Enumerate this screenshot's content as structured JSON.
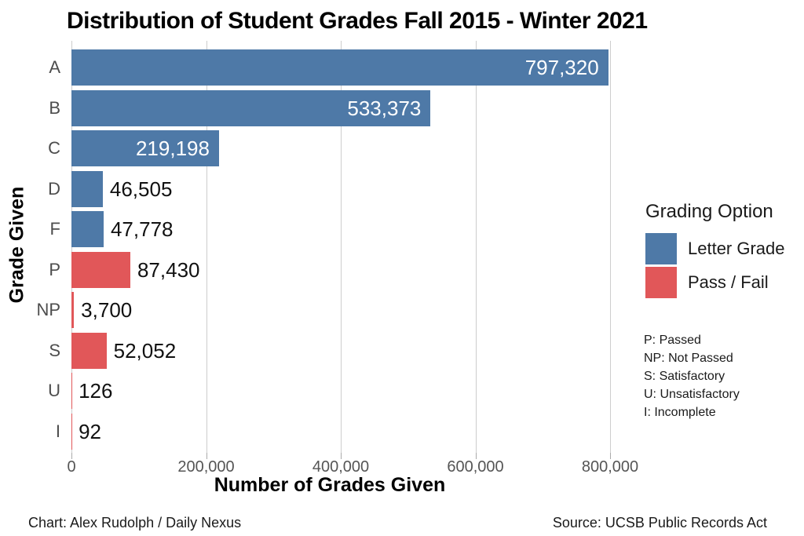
{
  "title": "Distribution of Student Grades Fall 2015 - Winter 2021",
  "legend": {
    "title": "Grading Option",
    "items": [
      {
        "label": "Letter Grade",
        "color": "#4e79a7"
      },
      {
        "label": "Pass / Fail",
        "color": "#e15759"
      }
    ]
  },
  "notes": [
    "P: Passed",
    "NP: Not Passed",
    "S: Satisfactory",
    "U: Unsatisfactory",
    "I: Incomplete"
  ],
  "footer": {
    "credit": "Chart: Alex Rudolph / Daily Nexus",
    "source": "Source: UCSB Public Records Act"
  },
  "chart_data": {
    "type": "bar",
    "orientation": "horizontal",
    "title": "Distribution of Student Grades Fall 2015 - Winter 2021",
    "xlabel": "Number of Grades Given",
    "ylabel": "Grade Given",
    "categories": [
      "A",
      "B",
      "C",
      "D",
      "F",
      "P",
      "NP",
      "S",
      "U",
      "I"
    ],
    "values": [
      797320,
      533373,
      219198,
      46505,
      47778,
      87430,
      3700,
      52052,
      126,
      92
    ],
    "value_labels": [
      "797,320",
      "533,373",
      "219,198",
      "46,505",
      "47,778",
      "87,430",
      "3,700",
      "52,052",
      "126",
      "92"
    ],
    "series_by_category": [
      "Letter Grade",
      "Letter Grade",
      "Letter Grade",
      "Letter Grade",
      "Letter Grade",
      "Pass / Fail",
      "Pass / Fail",
      "Pass / Fail",
      "Pass / Fail",
      "Pass / Fail"
    ],
    "series_colors": {
      "Letter Grade": "#4e79a7",
      "Pass / Fail": "#e15759"
    },
    "xlim": [
      0,
      800000
    ],
    "xticks": [
      0,
      200000,
      400000,
      600000,
      800000
    ],
    "xtick_labels": [
      "0",
      "200,000",
      "400,000",
      "600,000",
      "800,000"
    ],
    "grid": true,
    "legend_position": "right"
  }
}
